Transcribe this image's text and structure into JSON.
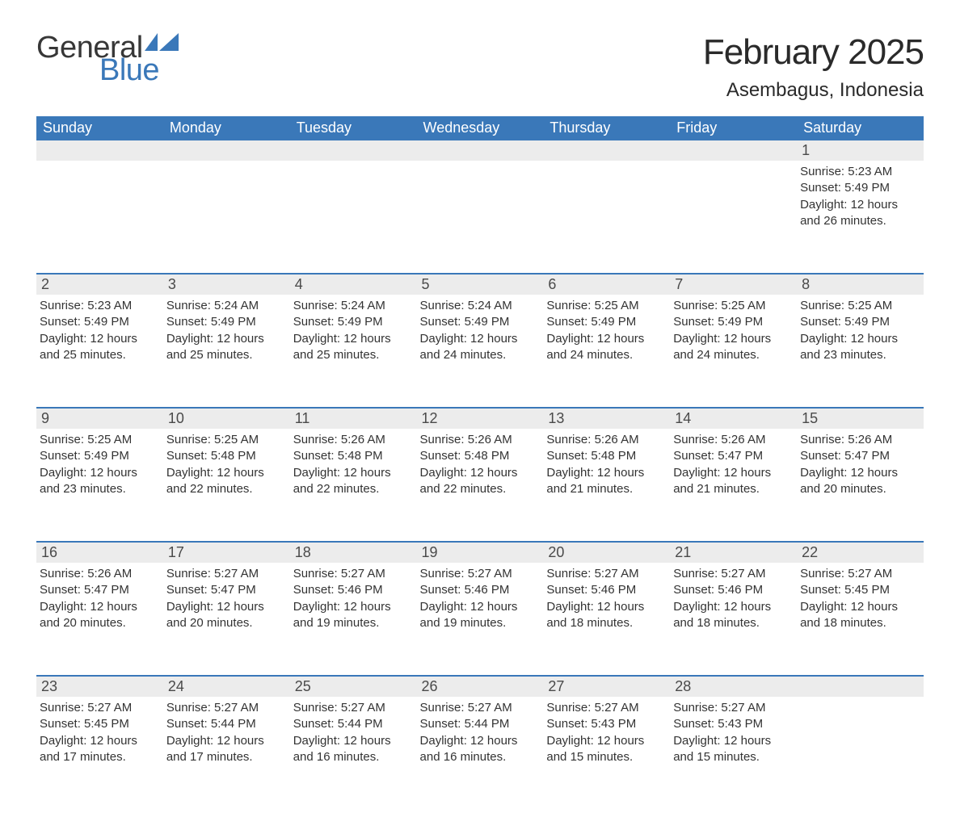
{
  "logo": {
    "text1": "General",
    "text2": "Blue",
    "color_dark": "#373737",
    "color_blue": "#3a78b9"
  },
  "title": "February 2025",
  "location": "Asembagus, Indonesia",
  "header_bg": "#3a78b9",
  "header_text_color": "#ffffff",
  "daynum_bg": "#ececec",
  "row_divider_color": "#3a78b9",
  "columns": [
    "Sunday",
    "Monday",
    "Tuesday",
    "Wednesday",
    "Thursday",
    "Friday",
    "Saturday"
  ],
  "weeks": [
    [
      null,
      null,
      null,
      null,
      null,
      null,
      {
        "n": "1",
        "sunrise": "5:23 AM",
        "sunset": "5:49 PM",
        "daylight_h": "12",
        "daylight_m": "26"
      }
    ],
    [
      {
        "n": "2",
        "sunrise": "5:23 AM",
        "sunset": "5:49 PM",
        "daylight_h": "12",
        "daylight_m": "25"
      },
      {
        "n": "3",
        "sunrise": "5:24 AM",
        "sunset": "5:49 PM",
        "daylight_h": "12",
        "daylight_m": "25"
      },
      {
        "n": "4",
        "sunrise": "5:24 AM",
        "sunset": "5:49 PM",
        "daylight_h": "12",
        "daylight_m": "25"
      },
      {
        "n": "5",
        "sunrise": "5:24 AM",
        "sunset": "5:49 PM",
        "daylight_h": "12",
        "daylight_m": "24"
      },
      {
        "n": "6",
        "sunrise": "5:25 AM",
        "sunset": "5:49 PM",
        "daylight_h": "12",
        "daylight_m": "24"
      },
      {
        "n": "7",
        "sunrise": "5:25 AM",
        "sunset": "5:49 PM",
        "daylight_h": "12",
        "daylight_m": "24"
      },
      {
        "n": "8",
        "sunrise": "5:25 AM",
        "sunset": "5:49 PM",
        "daylight_h": "12",
        "daylight_m": "23"
      }
    ],
    [
      {
        "n": "9",
        "sunrise": "5:25 AM",
        "sunset": "5:49 PM",
        "daylight_h": "12",
        "daylight_m": "23"
      },
      {
        "n": "10",
        "sunrise": "5:25 AM",
        "sunset": "5:48 PM",
        "daylight_h": "12",
        "daylight_m": "22"
      },
      {
        "n": "11",
        "sunrise": "5:26 AM",
        "sunset": "5:48 PM",
        "daylight_h": "12",
        "daylight_m": "22"
      },
      {
        "n": "12",
        "sunrise": "5:26 AM",
        "sunset": "5:48 PM",
        "daylight_h": "12",
        "daylight_m": "22"
      },
      {
        "n": "13",
        "sunrise": "5:26 AM",
        "sunset": "5:48 PM",
        "daylight_h": "12",
        "daylight_m": "21"
      },
      {
        "n": "14",
        "sunrise": "5:26 AM",
        "sunset": "5:47 PM",
        "daylight_h": "12",
        "daylight_m": "21"
      },
      {
        "n": "15",
        "sunrise": "5:26 AM",
        "sunset": "5:47 PM",
        "daylight_h": "12",
        "daylight_m": "20"
      }
    ],
    [
      {
        "n": "16",
        "sunrise": "5:26 AM",
        "sunset": "5:47 PM",
        "daylight_h": "12",
        "daylight_m": "20"
      },
      {
        "n": "17",
        "sunrise": "5:27 AM",
        "sunset": "5:47 PM",
        "daylight_h": "12",
        "daylight_m": "20"
      },
      {
        "n": "18",
        "sunrise": "5:27 AM",
        "sunset": "5:46 PM",
        "daylight_h": "12",
        "daylight_m": "19"
      },
      {
        "n": "19",
        "sunrise": "5:27 AM",
        "sunset": "5:46 PM",
        "daylight_h": "12",
        "daylight_m": "19"
      },
      {
        "n": "20",
        "sunrise": "5:27 AM",
        "sunset": "5:46 PM",
        "daylight_h": "12",
        "daylight_m": "18"
      },
      {
        "n": "21",
        "sunrise": "5:27 AM",
        "sunset": "5:46 PM",
        "daylight_h": "12",
        "daylight_m": "18"
      },
      {
        "n": "22",
        "sunrise": "5:27 AM",
        "sunset": "5:45 PM",
        "daylight_h": "12",
        "daylight_m": "18"
      }
    ],
    [
      {
        "n": "23",
        "sunrise": "5:27 AM",
        "sunset": "5:45 PM",
        "daylight_h": "12",
        "daylight_m": "17"
      },
      {
        "n": "24",
        "sunrise": "5:27 AM",
        "sunset": "5:44 PM",
        "daylight_h": "12",
        "daylight_m": "17"
      },
      {
        "n": "25",
        "sunrise": "5:27 AM",
        "sunset": "5:44 PM",
        "daylight_h": "12",
        "daylight_m": "16"
      },
      {
        "n": "26",
        "sunrise": "5:27 AM",
        "sunset": "5:44 PM",
        "daylight_h": "12",
        "daylight_m": "16"
      },
      {
        "n": "27",
        "sunrise": "5:27 AM",
        "sunset": "5:43 PM",
        "daylight_h": "12",
        "daylight_m": "15"
      },
      {
        "n": "28",
        "sunrise": "5:27 AM",
        "sunset": "5:43 PM",
        "daylight_h": "12",
        "daylight_m": "15"
      },
      null
    ]
  ],
  "labels": {
    "sunrise": "Sunrise:",
    "sunset": "Sunset:",
    "daylight_prefix": "Daylight:",
    "hours_word": "hours",
    "and_word": "and",
    "minutes_word": "minutes."
  }
}
